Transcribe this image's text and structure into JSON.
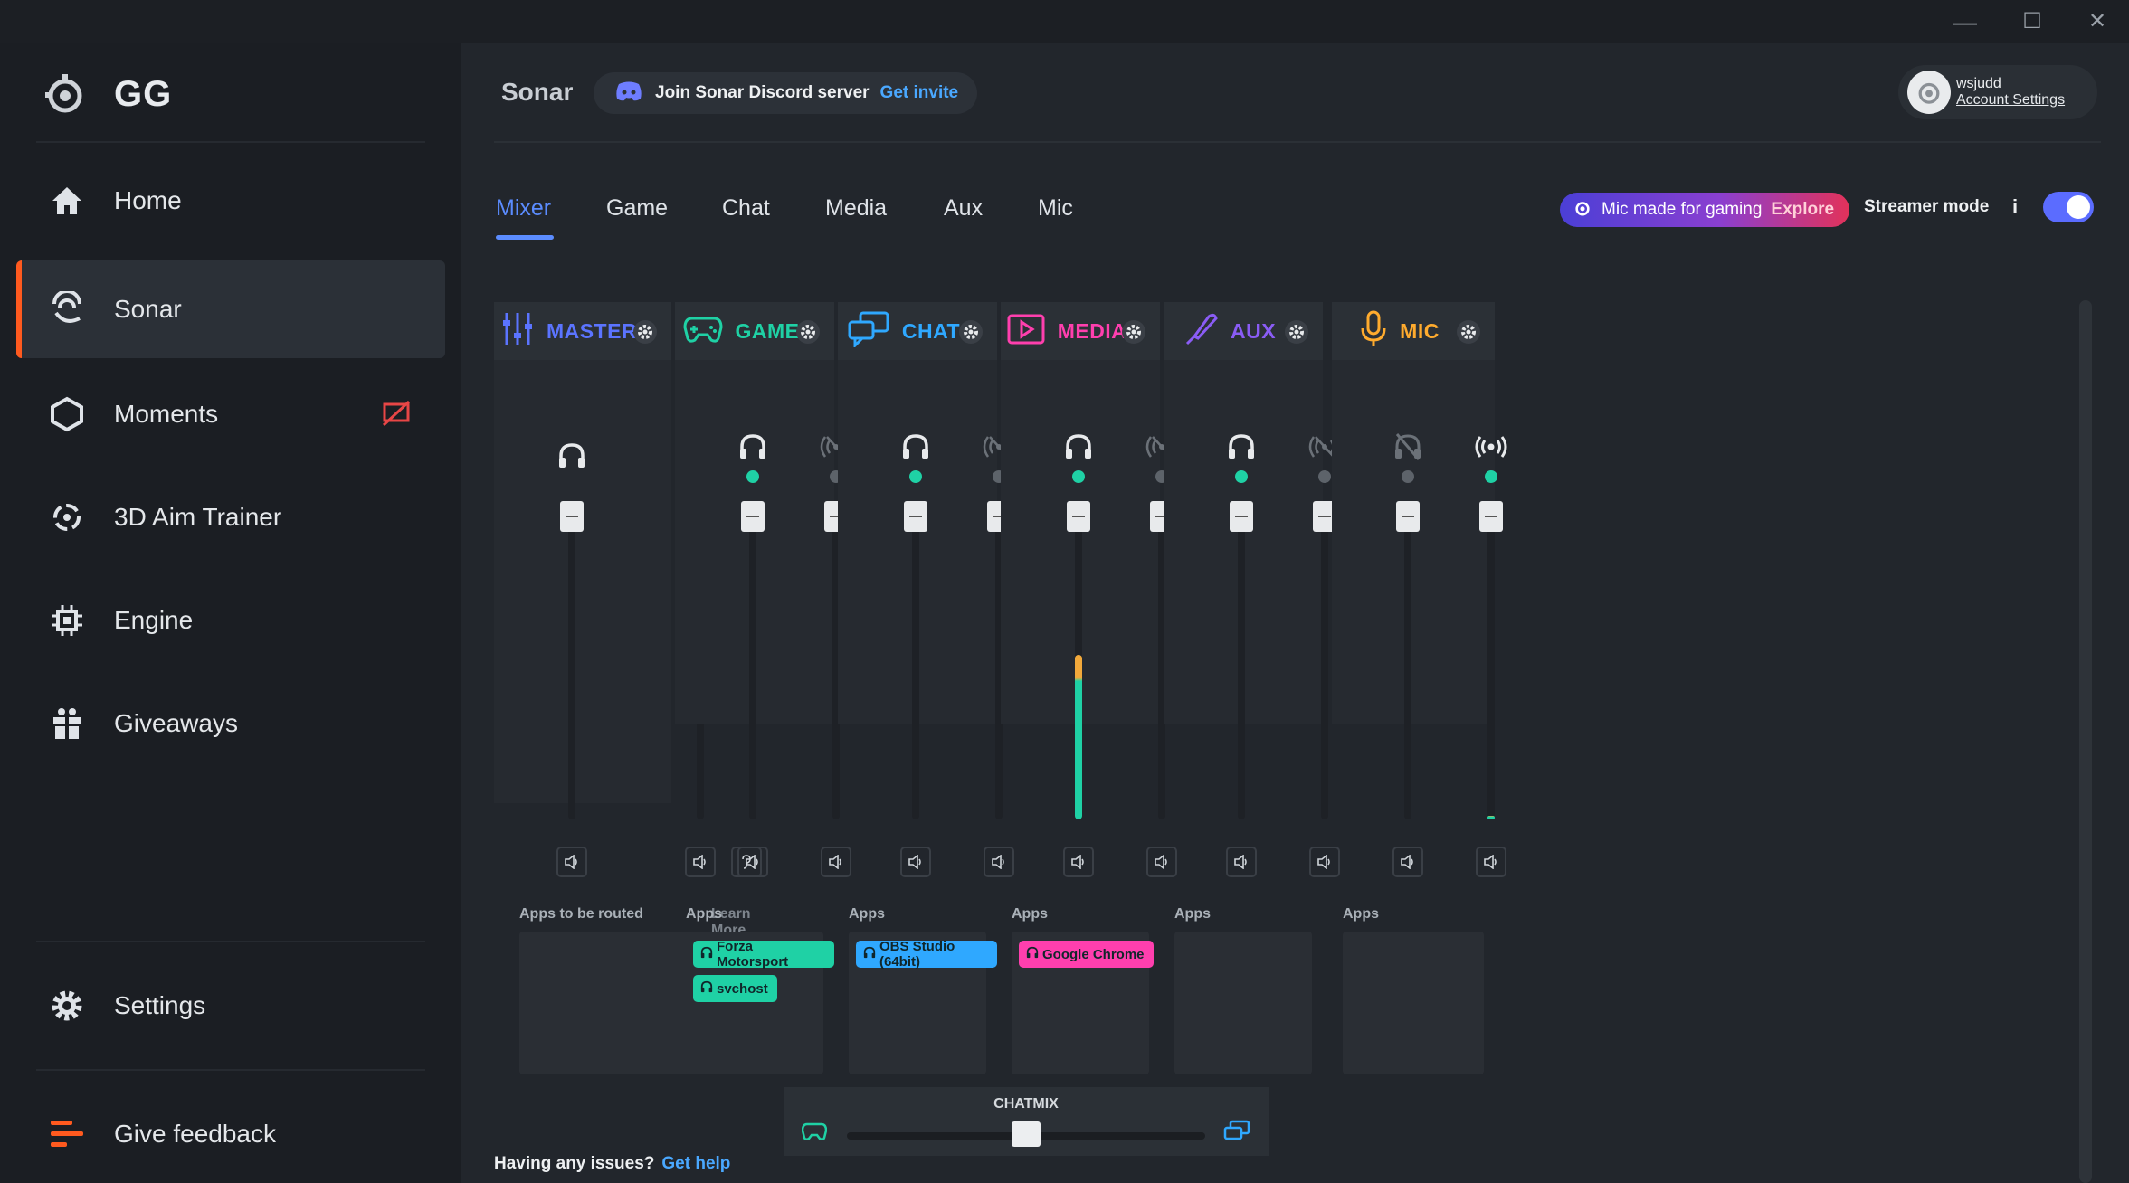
{
  "window": {
    "minimize": "—",
    "maximize": "☐",
    "close": "✕"
  },
  "sidebar": {
    "logo_text": "GG",
    "items": [
      {
        "label": "Home",
        "icon": "home-icon"
      },
      {
        "label": "Sonar",
        "icon": "sonar-icon",
        "active": true
      },
      {
        "label": "Moments",
        "icon": "moments-icon",
        "badge": "recording-off-icon"
      },
      {
        "label": "3D Aim Trainer",
        "icon": "aim-trainer-icon"
      },
      {
        "label": "Engine",
        "icon": "engine-icon"
      },
      {
        "label": "Giveaways",
        "icon": "gift-icon"
      }
    ],
    "settings_label": "Settings",
    "feedback_label": "Give feedback"
  },
  "header": {
    "title": "Sonar",
    "discord_text": "Join Sonar Discord server",
    "discord_link": "Get invite",
    "account_name": "wsjudd",
    "account_link": "Account Settings"
  },
  "tabs": [
    "Mixer",
    "Game",
    "Chat",
    "Media",
    "Aux",
    "Mic"
  ],
  "active_tab": "Mixer",
  "promo": {
    "text": "Mic made for gaming",
    "link": "Explore"
  },
  "streamer_mode": {
    "label": "Streamer mode",
    "info": "i",
    "enabled": true
  },
  "colors": {
    "master": "#5b74ff",
    "game": "#1fd1a5",
    "chat": "#2fa8ff",
    "media": "#ff3fae",
    "aux": "#8a5cf5",
    "mic": "#ffab2e",
    "accent": "#5b8cff"
  },
  "channels": [
    {
      "name": "MASTER",
      "icon": "sliders-icon",
      "color": "#5b74ff",
      "apps_label": "Apps to be routed",
      "learn_more": "Learn More",
      "apps": []
    },
    {
      "name": "GAME",
      "icon": "gamepad-icon",
      "color": "#1fd1a5",
      "apps_label": "Apps",
      "apps": [
        "Forza Motorsport",
        "svchost"
      ]
    },
    {
      "name": "CHAT",
      "icon": "chat-icon",
      "color": "#2fa8ff",
      "apps_label": "Apps",
      "apps": [
        "OBS Studio (64bit)"
      ]
    },
    {
      "name": "MEDIA",
      "icon": "play-icon",
      "color": "#ff3fae",
      "apps_label": "Apps",
      "apps": [
        "Google Chrome"
      ]
    },
    {
      "name": "AUX",
      "icon": "aux-icon",
      "color": "#8a5cf5",
      "apps_label": "Apps",
      "apps": []
    },
    {
      "name": "MIC",
      "icon": "microphone-icon",
      "color": "#ffab2e",
      "apps_label": "Apps",
      "apps": []
    }
  ],
  "levels": {
    "media_headphones": 0.52,
    "mic_stream": 0.01
  },
  "chatmix": {
    "label": "CHATMIX",
    "value": 0.5
  },
  "footer": {
    "help_text": "Having any issues?",
    "help_link": "Get help"
  }
}
